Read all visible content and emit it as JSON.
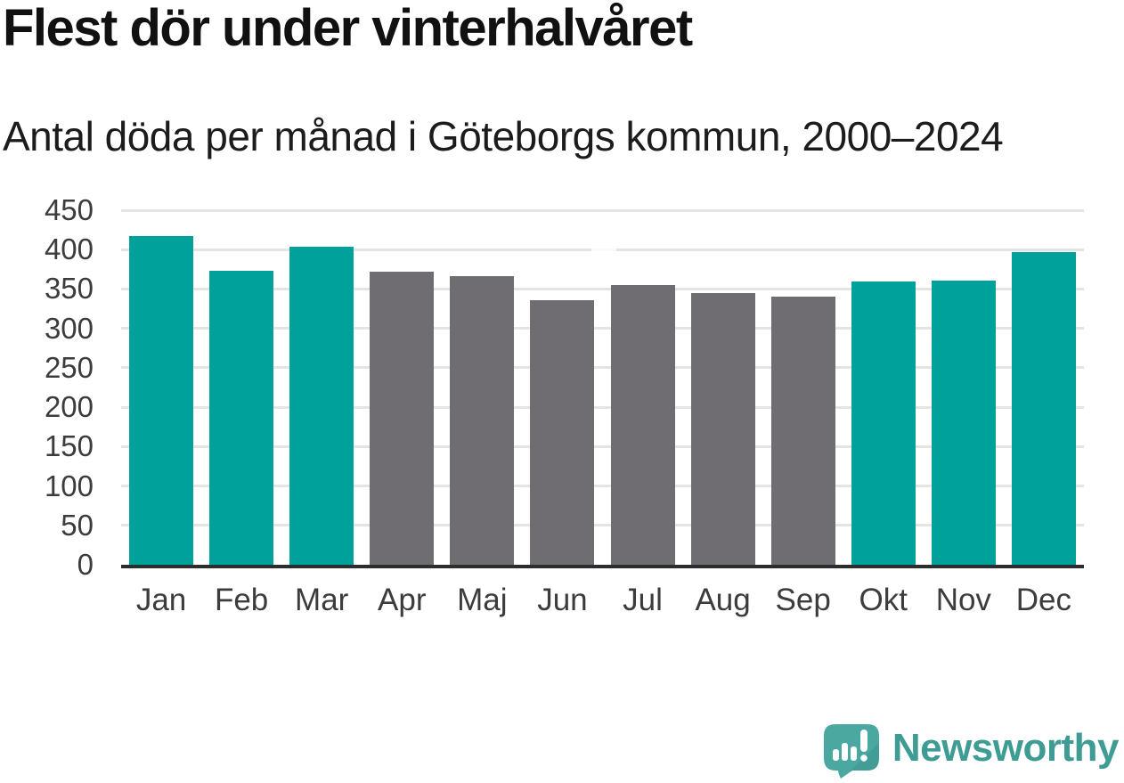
{
  "chart_data": {
    "type": "bar",
    "title": "Flest dör under vinterhalvåret",
    "subtitle": "Antal döda per månad i Göteborgs kommun, 2000–2024",
    "categories": [
      "Jan",
      "Feb",
      "Mar",
      "Apr",
      "Maj",
      "Jun",
      "Jul",
      "Aug",
      "Sep",
      "Okt",
      "Nov",
      "Dec"
    ],
    "values": [
      417,
      373,
      404,
      372,
      366,
      336,
      355,
      345,
      340,
      360,
      361,
      397
    ],
    "highlighted_categories": [
      "Jan",
      "Feb",
      "Mar",
      "Okt",
      "Nov",
      "Dec"
    ],
    "highlight_color": "#00A19A",
    "base_color": "#6F6C72",
    "xlabel": "",
    "ylabel": "",
    "ylim": [
      0,
      450
    ],
    "yticks": [
      0,
      50,
      100,
      150,
      200,
      250,
      300,
      350,
      400,
      450
    ],
    "grid": true,
    "legend": "none"
  },
  "branding": {
    "logo_text": "Newsworthy",
    "logo_icon": "speech-bubble-bar-chart-icon",
    "logo_icon_color": "#4BA8A0",
    "logo_text_color": "#3F9C95"
  },
  "colors": {
    "background": "#FFFFFF",
    "title": "#111111",
    "subtitle": "#1C1C1C",
    "axis_line": "#2D2D2D",
    "tick_label": "#3C3C3C",
    "gridline": "#E4E4E4"
  }
}
